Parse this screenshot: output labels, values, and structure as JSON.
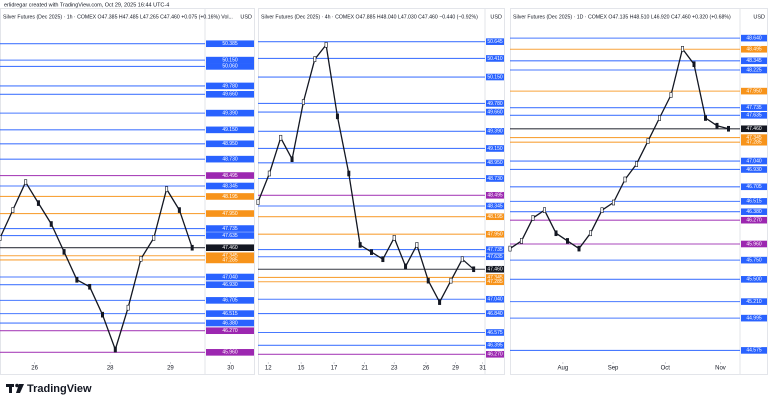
{
  "header": "erlidregar created with TradingView.com, Oct 29, 2025 16:44 UTC-4",
  "footer": "TradingView",
  "chart_data": [
    {
      "type": "line",
      "title": "Silver Futures (Dec 2025) · 1h · COMEX  O47.385 H47.485 L47.265 C47.460 +0.075 (+0.16%) Vol...",
      "unit": "USD",
      "values": [
        47.6,
        48.0,
        48.4,
        48.1,
        47.8,
        47.4,
        47.0,
        46.9,
        46.5,
        46.0,
        46.6,
        47.3,
        47.6,
        48.3,
        48.0,
        47.46
      ],
      "color": "#131722",
      "xlim": [
        0,
        16
      ],
      "xticks": [
        {
          "value": 2.7,
          "label": "26"
        },
        {
          "value": 8.6,
          "label": "28"
        },
        {
          "value": 13.3,
          "label": "29"
        },
        {
          "value": 18,
          "label": "30"
        }
      ],
      "ylim": [
        45.85,
        50.84
      ],
      "yticks": [
        50.385,
        {
          "value": 50.15,
          "label": "50.150"
        },
        {
          "value": 50.06,
          "label": "50.060"
        },
        {
          "value": 49.78,
          "label": "49.780"
        },
        {
          "value": 49.66,
          "label": "49.660"
        },
        {
          "value": 49.39,
          "label": "49.390"
        },
        {
          "value": 49.15,
          "label": "49.150"
        },
        {
          "value": 48.95,
          "label": "48.950"
        },
        {
          "value": 48.73,
          "label": "48.730"
        },
        48.495,
        48.345,
        48.195,
        {
          "value": 47.95,
          "label": "47.950"
        },
        47.735,
        47.635,
        {
          "value": 47.46,
          "label": "47.460"
        },
        47.345,
        47.285,
        {
          "value": 47.04,
          "label": "47.040"
        },
        {
          "value": 46.93,
          "label": "46.930"
        },
        46.705,
        46.515,
        {
          "value": 46.38,
          "label": "46.380"
        },
        {
          "value": 46.27,
          "label": "46.270"
        },
        {
          "value": 45.96,
          "label": "45.960"
        }
      ],
      "tick_colors": [
        "#2962ff",
        "#2962ff",
        "#2962ff",
        "#2962ff",
        "#2962ff",
        "#2962ff",
        "#2962ff",
        "#2962ff",
        "#2962ff",
        "#9c27b0",
        "#2962ff",
        "#f7931a",
        "#f7931a",
        "#2962ff",
        "#2962ff",
        "#131722",
        "#f7931a",
        "#f7931a",
        "#2962ff",
        "#2962ff",
        "#2962ff",
        "#2962ff",
        "#2962ff",
        "#9c27b0",
        "#9c27b0"
      ]
    },
    {
      "type": "line",
      "title": "Silver Futures (Dec 2025) · 4h · COMEX  O47.885 H48.040 L47.030 C47.460 −0.440 (−0.92%)",
      "unit": "USD",
      "values": [
        48.4,
        48.8,
        49.3,
        49.0,
        49.8,
        50.4,
        50.6,
        49.6,
        48.8,
        47.8,
        47.7,
        47.6,
        47.9,
        47.5,
        47.8,
        47.3,
        47.0,
        47.3,
        47.6,
        47.46
      ],
      "color": "#131722",
      "xlim": [
        0,
        20
      ],
      "xticks": [
        {
          "value": 0.9,
          "label": "12"
        },
        {
          "value": 3.8,
          "label": "15"
        },
        {
          "value": 6.7,
          "label": "17"
        },
        {
          "value": 9.4,
          "label": "21"
        },
        {
          "value": 12,
          "label": "23"
        },
        {
          "value": 14.8,
          "label": "26"
        },
        {
          "value": 17.4,
          "label": "29"
        },
        {
          "value": 19.8,
          "label": "31"
        }
      ],
      "ylim": [
        46.19,
        51.06
      ],
      "yticks": [
        50.645,
        {
          "value": 50.41,
          "label": "50.410"
        },
        {
          "value": 50.15,
          "label": "50.150"
        },
        {
          "value": 49.78,
          "label": "49.780"
        },
        {
          "value": 49.66,
          "label": "49.660"
        },
        {
          "value": 49.39,
          "label": "49.390"
        },
        {
          "value": 49.15,
          "label": "49.150"
        },
        {
          "value": 48.95,
          "label": "48.950"
        },
        {
          "value": 48.73,
          "label": "48.730"
        },
        48.495,
        48.345,
        48.195,
        {
          "value": 47.95,
          "label": "47.950"
        },
        47.735,
        47.635,
        {
          "value": 47.46,
          "label": "47.460"
        },
        47.345,
        47.285,
        {
          "value": 47.04,
          "label": "47.040"
        },
        {
          "value": 46.84,
          "label": "46.840"
        },
        46.575,
        46.395,
        {
          "value": 46.27,
          "label": "46.270"
        }
      ],
      "tick_colors": [
        "#2962ff",
        "#2962ff",
        "#2962ff",
        "#2962ff",
        "#2962ff",
        "#2962ff",
        "#2962ff",
        "#2962ff",
        "#2962ff",
        "#9c27b0",
        "#2962ff",
        "#f7931a",
        "#f7931a",
        "#2962ff",
        "#2962ff",
        "#131722",
        "#f7931a",
        "#f7931a",
        "#2962ff",
        "#2962ff",
        "#2962ff",
        "#2962ff",
        "#9c27b0"
      ]
    },
    {
      "type": "line",
      "title": "Silver Futures (Dec 2025) · 1D · COMEX  O47.135 H48.510 L46.920 C47.460 +0.320 (+0.68%)",
      "unit": "USD",
      "values": [
        45.9,
        46.0,
        46.3,
        46.4,
        46.1,
        46.0,
        45.9,
        46.1,
        46.4,
        46.5,
        46.8,
        47.0,
        47.3,
        47.6,
        47.9,
        48.5,
        48.3,
        47.6,
        47.5,
        47.46
      ],
      "color": "#131722",
      "xlim": [
        0,
        20
      ],
      "xticks": [
        {
          "value": 4.6,
          "label": "Aug"
        },
        {
          "value": 8.96,
          "label": "Sep"
        },
        {
          "value": 13.5,
          "label": "Oct"
        },
        {
          "value": 18.3,
          "label": "Nov"
        }
      ],
      "ylim": [
        44.45,
        48.98
      ],
      "yticks": [
        {
          "value": 48.64,
          "label": "48.640"
        },
        48.495,
        48.345,
        48.225,
        {
          "value": 47.95,
          "label": "47.950"
        },
        47.735,
        47.635,
        {
          "value": 47.46,
          "label": "47.460"
        },
        47.345,
        47.285,
        {
          "value": 47.04,
          "label": "47.040"
        },
        {
          "value": 46.93,
          "label": "46.930"
        },
        46.705,
        46.515,
        {
          "value": 46.38,
          "label": "46.380"
        },
        {
          "value": 46.27,
          "label": "46.270"
        },
        {
          "value": 45.96,
          "label": "45.960"
        },
        {
          "value": 45.75,
          "label": "45.750"
        },
        {
          "value": 45.5,
          "label": "45.500"
        },
        {
          "value": 45.21,
          "label": "45.210"
        },
        44.995,
        44.575
      ],
      "tick_colors": [
        "#2962ff",
        "#f7931a",
        "#2962ff",
        "#2962ff",
        "#f7931a",
        "#2962ff",
        "#2962ff",
        "#131722",
        "#f7931a",
        "#f7931a",
        "#2962ff",
        "#2962ff",
        "#2962ff",
        "#2962ff",
        "#2962ff",
        "#9c27b0",
        "#9c27b0",
        "#2962ff",
        "#2962ff",
        "#2962ff",
        "#2962ff",
        "#2962ff"
      ]
    }
  ]
}
